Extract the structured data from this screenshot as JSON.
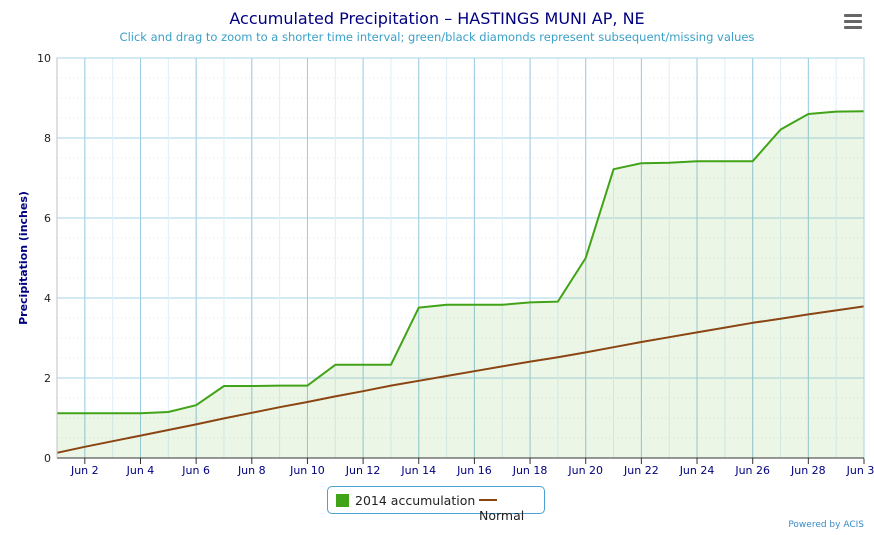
{
  "header": {
    "title": "Accumulated Precipitation – HASTINGS MUNI AP, NE",
    "subtitle": "Click and drag to zoom to a shorter time interval; green/black diamonds represent subsequent/missing values",
    "menu_icon": "hamburger-menu-icon"
  },
  "legend": {
    "items": [
      {
        "label": "2014 accumulation",
        "color": "#41a317"
      },
      {
        "label": "Normal",
        "color": "#8b4513"
      }
    ]
  },
  "credits": "Powered by ACIS",
  "chart_data": {
    "type": "area",
    "ylabel": "Precipitation (inches)",
    "ylim": [
      0,
      10
    ],
    "y_ticks": [
      "0",
      "2",
      "4",
      "6",
      "8",
      "10"
    ],
    "x_ticks": [
      "Jun 2",
      "Jun 4",
      "Jun 6",
      "Jun 8",
      "Jun 10",
      "Jun 12",
      "Jun 14",
      "Jun 16",
      "Jun 18",
      "Jun 20",
      "Jun 22",
      "Jun 24",
      "Jun 26",
      "Jun 28",
      "Jun 30"
    ],
    "x": [
      "Jun 1",
      "Jun 2",
      "Jun 3",
      "Jun 4",
      "Jun 5",
      "Jun 6",
      "Jun 7",
      "Jun 8",
      "Jun 9",
      "Jun 10",
      "Jun 11",
      "Jun 12",
      "Jun 13",
      "Jun 14",
      "Jun 15",
      "Jun 16",
      "Jun 17",
      "Jun 18",
      "Jun 19",
      "Jun 20",
      "Jun 21",
      "Jun 22",
      "Jun 23",
      "Jun 24",
      "Jun 25",
      "Jun 26",
      "Jun 27",
      "Jun 28",
      "Jun 29",
      "Jun 30"
    ],
    "series": [
      {
        "name": "2014 accumulation",
        "color": "#41a317",
        "fill": true,
        "values": [
          1.12,
          1.12,
          1.12,
          1.12,
          1.15,
          1.32,
          1.8,
          1.8,
          1.81,
          1.81,
          2.33,
          2.33,
          2.33,
          3.76,
          3.83,
          3.83,
          3.83,
          3.89,
          3.91,
          5.0,
          7.22,
          7.37,
          7.38,
          7.42,
          7.42,
          7.42,
          8.21,
          8.6,
          8.66,
          8.67
        ]
      },
      {
        "name": "Normal",
        "color": "#8b4513",
        "fill": false,
        "values": [
          0.13,
          0.28,
          0.42,
          0.56,
          0.7,
          0.84,
          0.99,
          1.13,
          1.27,
          1.4,
          1.54,
          1.67,
          1.81,
          1.93,
          2.05,
          2.17,
          2.29,
          2.41,
          2.52,
          2.64,
          2.77,
          2.9,
          3.02,
          3.14,
          3.26,
          3.38,
          3.48,
          3.59,
          3.69,
          3.79
        ]
      }
    ],
    "grid": true
  }
}
